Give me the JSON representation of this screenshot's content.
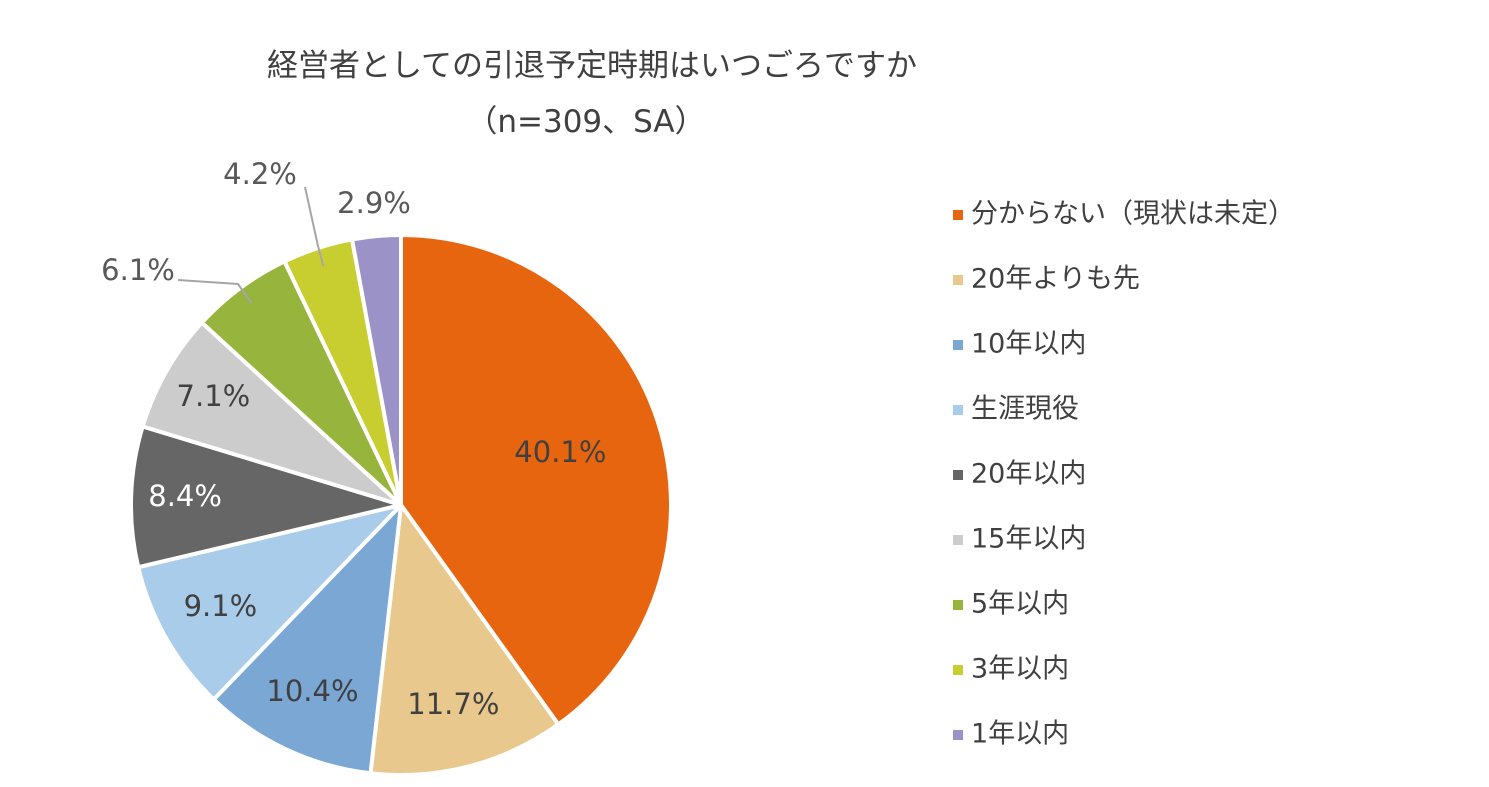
{
  "chart_data": {
    "type": "pie",
    "title": "経営者としての引退予定時期はいつごろですか",
    "subtitle": "（n=309、SA）",
    "legend_position": "right",
    "slices": [
      {
        "label": "分からない（現状は未定）",
        "value": 40.1,
        "display": "40.1%",
        "color": "#E8650F"
      },
      {
        "label": "20年よりも先",
        "value": 11.7,
        "display": "11.7%",
        "color": "#E8C88D"
      },
      {
        "label": "10年以内",
        "value": 10.4,
        "display": "10.4%",
        "color": "#7AA7D4"
      },
      {
        "label": "生涯現役",
        "value": 9.1,
        "display": "9.1%",
        "color": "#A8CCEA"
      },
      {
        "label": "20年以内",
        "value": 8.4,
        "display": "8.4%",
        "color": "#666666"
      },
      {
        "label": "15年以内",
        "value": 7.1,
        "display": "7.1%",
        "color": "#CCCCCC"
      },
      {
        "label": "5年以内",
        "value": 6.1,
        "display": "6.1%",
        "color": "#97B43D"
      },
      {
        "label": "3年以内",
        "value": 4.2,
        "display": "4.2%",
        "color": "#C8CE2F"
      },
      {
        "label": "1年以内",
        "value": 2.9,
        "display": "2.9%",
        "color": "#9B93C8"
      }
    ]
  }
}
